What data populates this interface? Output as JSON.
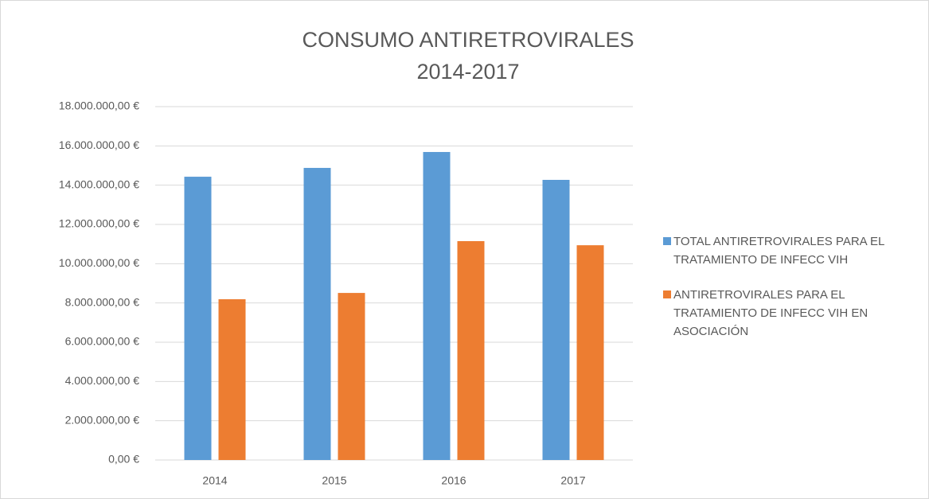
{
  "chart_data": {
    "type": "bar",
    "title": [
      "CONSUMO ANTIRETROVIRALES",
      "2014-2017"
    ],
    "categories": [
      "2014",
      "2015",
      "2016",
      "2017"
    ],
    "series": [
      {
        "name": "TOTAL ANTIRETROVIRALES PARA EL TRATAMIENTO DE INFECC VIH",
        "color": "#5b9bd5",
        "values": [
          14430000,
          14880000,
          15690000,
          14270000
        ]
      },
      {
        "name": "ANTIRETROVIRALES PARA EL TRATAMIENTO DE INFECC VIH EN ASOCIACIÓN",
        "color": "#ed7d31",
        "values": [
          8190000,
          8510000,
          11150000,
          10940000
        ]
      }
    ],
    "ylim": [
      0,
      18000000
    ],
    "yticks": [
      {
        "value": 0,
        "label": "0,00 €"
      },
      {
        "value": 2000000,
        "label": "2.000.000,00 €"
      },
      {
        "value": 4000000,
        "label": "4.000.000,00 €"
      },
      {
        "value": 6000000,
        "label": "6.000.000,00 €"
      },
      {
        "value": 8000000,
        "label": "8.000.000,00 €"
      },
      {
        "value": 10000000,
        "label": "10.000.000,00 €"
      },
      {
        "value": 12000000,
        "label": "12.000.000,00 €"
      },
      {
        "value": 14000000,
        "label": "14.000.000,00 €"
      },
      {
        "value": 16000000,
        "label": "16.000.000,00 €"
      },
      {
        "value": 18000000,
        "label": "18.000.000,00 €"
      }
    ],
    "grid": true,
    "legend": "right"
  }
}
